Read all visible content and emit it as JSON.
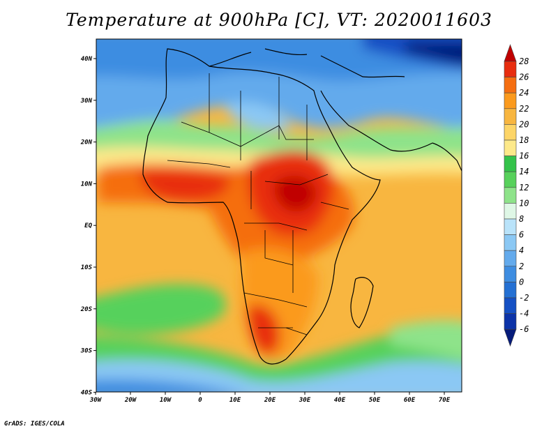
{
  "map": {
    "title": "Temperature at 900hPa [C], VT: 2020011603",
    "credit": "GrADS: IGES/COLA",
    "lon_labels": [
      "30W",
      "20W",
      "10W",
      "0",
      "10E",
      "20E",
      "30E",
      "40E",
      "50E",
      "60E",
      "70E"
    ],
    "lat_labels": [
      "40N",
      "30N",
      "20N",
      "10N",
      "EQ",
      "10S",
      "20S",
      "30S",
      "40S"
    ],
    "colorbar": {
      "labels": [
        "28",
        "26",
        "24",
        "22",
        "20",
        "18",
        "16",
        "14",
        "12",
        "10",
        "8",
        "6",
        "4",
        "2",
        "0",
        "-2",
        "-4",
        "-6"
      ],
      "colors": [
        "#c00000",
        "#e82d0f",
        "#f56e11",
        "#fb9a1d",
        "#f8b640",
        "#fdd567",
        "#fde98a",
        "#34c34a",
        "#57d15b",
        "#8ee38a",
        "#dff7e6",
        "#b9e3fa",
        "#8bc8f4",
        "#63aaec",
        "#3e8de1",
        "#2470d3",
        "#1550c4",
        "#0c33a8",
        "#061b7a"
      ]
    }
  }
}
